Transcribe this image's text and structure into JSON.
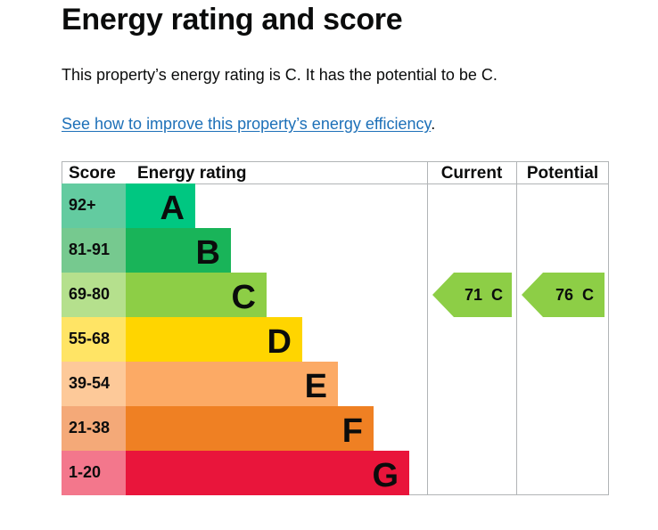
{
  "page": {
    "title": "Energy rating and score",
    "intro": "This property’s energy rating is C. It has the potential to be C.",
    "improve_link": "See how to improve this property’s energy efficiency",
    "improve_suffix": "."
  },
  "chart_data": {
    "type": "table",
    "headers": {
      "score": "Score",
      "rating": "Energy rating",
      "current": "Current",
      "potential": "Potential"
    },
    "bands": [
      {
        "score": "92+",
        "letter": "A",
        "color": "#00c781",
        "score_bg": "#63cba0"
      },
      {
        "score": "81-91",
        "letter": "B",
        "color": "#19b459",
        "score_bg": "#76c98f"
      },
      {
        "score": "69-80",
        "letter": "C",
        "color": "#8dce46",
        "score_bg": "#b5e08d"
      },
      {
        "score": "55-68",
        "letter": "D",
        "color": "#ffd500",
        "score_bg": "#ffe465"
      },
      {
        "score": "39-54",
        "letter": "E",
        "color": "#fcaa65",
        "score_bg": "#fdc999"
      },
      {
        "score": "21-38",
        "letter": "F",
        "color": "#ef8023",
        "score_bg": "#f4a978"
      },
      {
        "score": "1-20",
        "letter": "G",
        "color": "#e9153b",
        "score_bg": "#f3778c"
      }
    ],
    "current": {
      "value": 71,
      "letter": "C",
      "label": "71  C",
      "color": "#8dce46"
    },
    "potential": {
      "value": 76,
      "letter": "C",
      "label": "76  C",
      "color": "#8dce46"
    }
  }
}
